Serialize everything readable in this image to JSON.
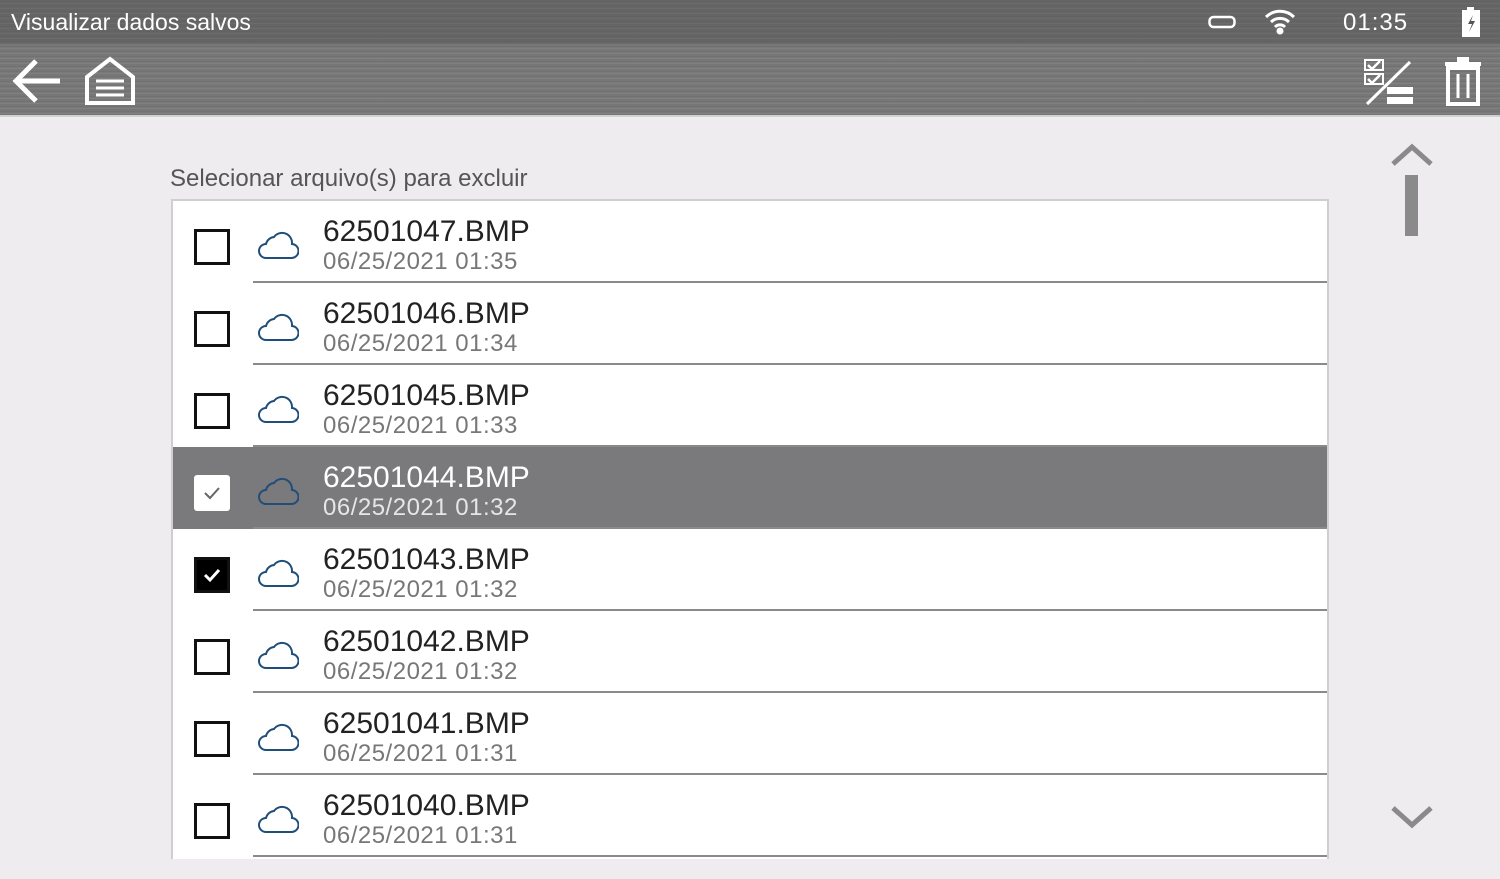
{
  "header": {
    "title": "Visualizar dados salvos",
    "time": "01:35"
  },
  "list": {
    "label": "Selecionar arquivo(s) para excluir",
    "items": [
      {
        "name": "62501047.BMP",
        "date": "06/25/2021 01:35",
        "checked": false,
        "highlighted": false
      },
      {
        "name": "62501046.BMP",
        "date": "06/25/2021 01:34",
        "checked": false,
        "highlighted": false
      },
      {
        "name": "62501045.BMP",
        "date": "06/25/2021 01:33",
        "checked": false,
        "highlighted": false
      },
      {
        "name": "62501044.BMP",
        "date": "06/25/2021 01:32",
        "checked": true,
        "highlighted": true
      },
      {
        "name": "62501043.BMP",
        "date": "06/25/2021 01:32",
        "checked": true,
        "highlighted": false
      },
      {
        "name": "62501042.BMP",
        "date": "06/25/2021 01:32",
        "checked": false,
        "highlighted": false
      },
      {
        "name": "62501041.BMP",
        "date": "06/25/2021 01:31",
        "checked": false,
        "highlighted": false
      },
      {
        "name": "62501040.BMP",
        "date": "06/25/2021 01:31",
        "checked": false,
        "highlighted": false
      }
    ]
  },
  "colors": {
    "cloud": "#1f4e79",
    "highlight": "#7a797c"
  }
}
